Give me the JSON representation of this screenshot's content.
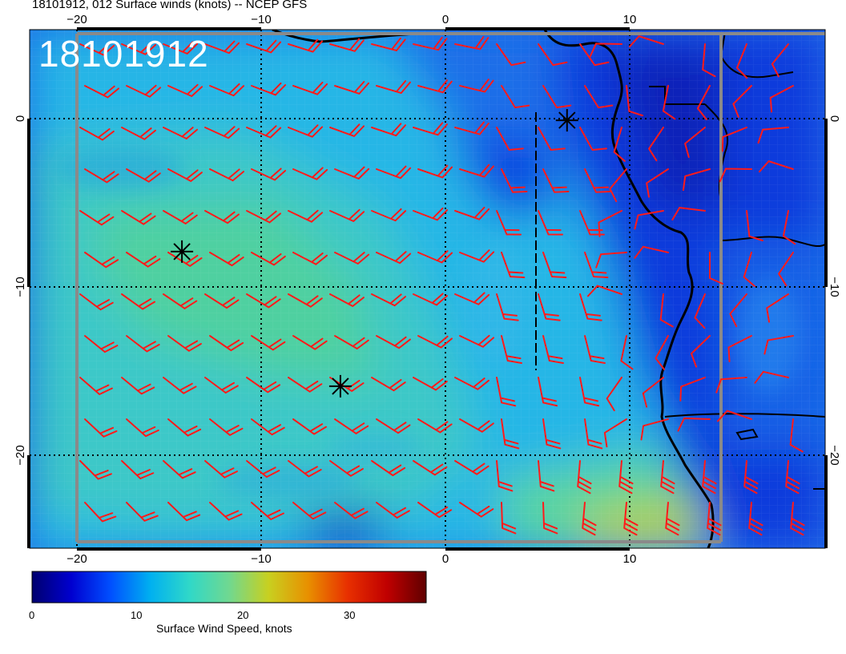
{
  "header": {
    "title": "18101912, 012 Surface winds (knots) -- NCEP GFS"
  },
  "stamp": "18101912",
  "axes": {
    "lon_ticks": [
      "−20",
      "−10",
      "0",
      "10"
    ],
    "lat_ticks": [
      "0",
      "−10",
      "−20"
    ]
  },
  "colorbar": {
    "title": "Surface Wind Speed, knots",
    "ticks": [
      "0",
      "10",
      "20",
      "30"
    ],
    "range": [
      0,
      37
    ],
    "colors": [
      "#00006e",
      "#0000d0",
      "#0050ff",
      "#00b0f0",
      "#30d8c8",
      "#70d890",
      "#c8d020",
      "#e89000",
      "#e83000",
      "#c00000",
      "#600000"
    ]
  },
  "markers": [
    {
      "name": "storm-marker-1",
      "lon": -14.3,
      "lat": -7.9
    },
    {
      "name": "storm-marker-2",
      "lon": -5.7,
      "lat": -15.9
    },
    {
      "name": "storm-marker-3",
      "lon": 6.6,
      "lat": -0.1
    }
  ],
  "layers": {
    "wind_barb_color": "#ff1a1a",
    "coastline_color": "#000000",
    "grid_line_style": "dotted"
  }
}
